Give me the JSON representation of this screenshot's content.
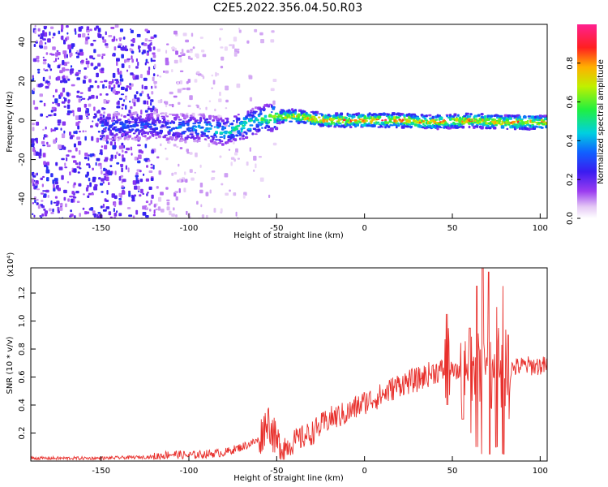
{
  "title": "C2E5.2022.356.04.50.R03",
  "chart_data": [
    {
      "type": "heatmap",
      "xlabel": "Height of straight line (km)",
      "ylabel": "Frequency (Hz)",
      "xlim": [
        -190,
        104
      ],
      "ylim": [
        -50,
        49
      ],
      "x_ticks": [
        -150,
        -100,
        -50,
        0,
        50,
        100
      ],
      "x_tick_labels": [
        "-150",
        "-100",
        "-50",
        "0",
        "50",
        "100"
      ],
      "y_ticks": [
        -40,
        -20,
        0,
        20,
        40
      ],
      "y_tick_labels": [
        "-40",
        "-20",
        "0",
        "20",
        "40"
      ],
      "colorbar": {
        "label": "Normalized spectral amplitude",
        "range": [
          0,
          1
        ],
        "ticks": [
          0.0,
          0.2,
          0.4,
          0.6,
          0.8
        ],
        "tick_labels": [
          "0.0",
          "0.2",
          "0.4",
          "0.6",
          "0.8"
        ],
        "colormap": "rainbow (white-violet-blue-cyan-green-yellow-red-magenta)"
      },
      "ridge": {
        "x": [
          -140,
          -120,
          -100,
          -90,
          -80,
          -70,
          -60,
          -50,
          -40,
          -30,
          -20,
          0,
          20,
          40,
          60,
          80,
          100
        ],
        "frequency": [
          -3,
          -3,
          -4,
          -4,
          -6,
          -3,
          0,
          2,
          2,
          1,
          0,
          0,
          0,
          -1,
          0,
          -1,
          -1
        ],
        "amplitude": [
          0.35,
          0.35,
          0.4,
          0.45,
          0.5,
          0.55,
          0.55,
          0.7,
          0.8,
          0.85,
          0.85,
          0.9,
          0.9,
          0.85,
          0.85,
          0.85,
          0.85
        ]
      }
    },
    {
      "type": "line",
      "xlabel": "Height of straight line (km)",
      "ylabel": "SNR (10 * v/v)",
      "y_scale_note": "(x10⁴)",
      "xlim": [
        -190,
        104
      ],
      "ylim": [
        0,
        1.38
      ],
      "x_ticks": [
        -150,
        -100,
        -50,
        0,
        50,
        100
      ],
      "x_tick_labels": [
        "-150",
        "-100",
        "-50",
        "0",
        "50",
        "100"
      ],
      "y_ticks": [
        0.2,
        0.4,
        0.6,
        0.8,
        1.0,
        1.2
      ],
      "y_tick_labels": [
        "0.2",
        "0.4",
        "0.6",
        "0.8",
        "1.0",
        "1.2"
      ],
      "color": "#e8302c",
      "series_envelope": {
        "x": [
          -190,
          -150,
          -120,
          -110,
          -100,
          -80,
          -70,
          -60,
          -55,
          -50,
          -45,
          -40,
          -30,
          -20,
          -10,
          0,
          10,
          20,
          30,
          40,
          48,
          52,
          60,
          70,
          80,
          90,
          104
        ],
        "y": [
          0.02,
          0.02,
          0.03,
          0.05,
          0.04,
          0.06,
          0.1,
          0.15,
          0.3,
          0.12,
          0.1,
          0.14,
          0.2,
          0.3,
          0.34,
          0.42,
          0.47,
          0.55,
          0.58,
          0.64,
          0.65,
          0.63,
          0.68,
          0.67,
          0.65,
          0.68,
          0.68
        ]
      },
      "spikes": [
        {
          "x": 47,
          "y": 1.05,
          "low": 0.4
        },
        {
          "x": 56,
          "y": 0.85,
          "low": 0.3
        },
        {
          "x": 60,
          "y": 0.95,
          "low": 0.2
        },
        {
          "x": 64,
          "y": 1.25,
          "low": 0.1
        },
        {
          "x": 67,
          "y": 1.38,
          "low": 0.05
        },
        {
          "x": 71,
          "y": 1.35,
          "low": 0.05
        },
        {
          "x": 75,
          "y": 1.1,
          "low": 0.1
        },
        {
          "x": 79,
          "y": 1.25,
          "low": 0.05
        },
        {
          "x": 82,
          "y": 0.9,
          "low": 0.3
        }
      ]
    }
  ]
}
